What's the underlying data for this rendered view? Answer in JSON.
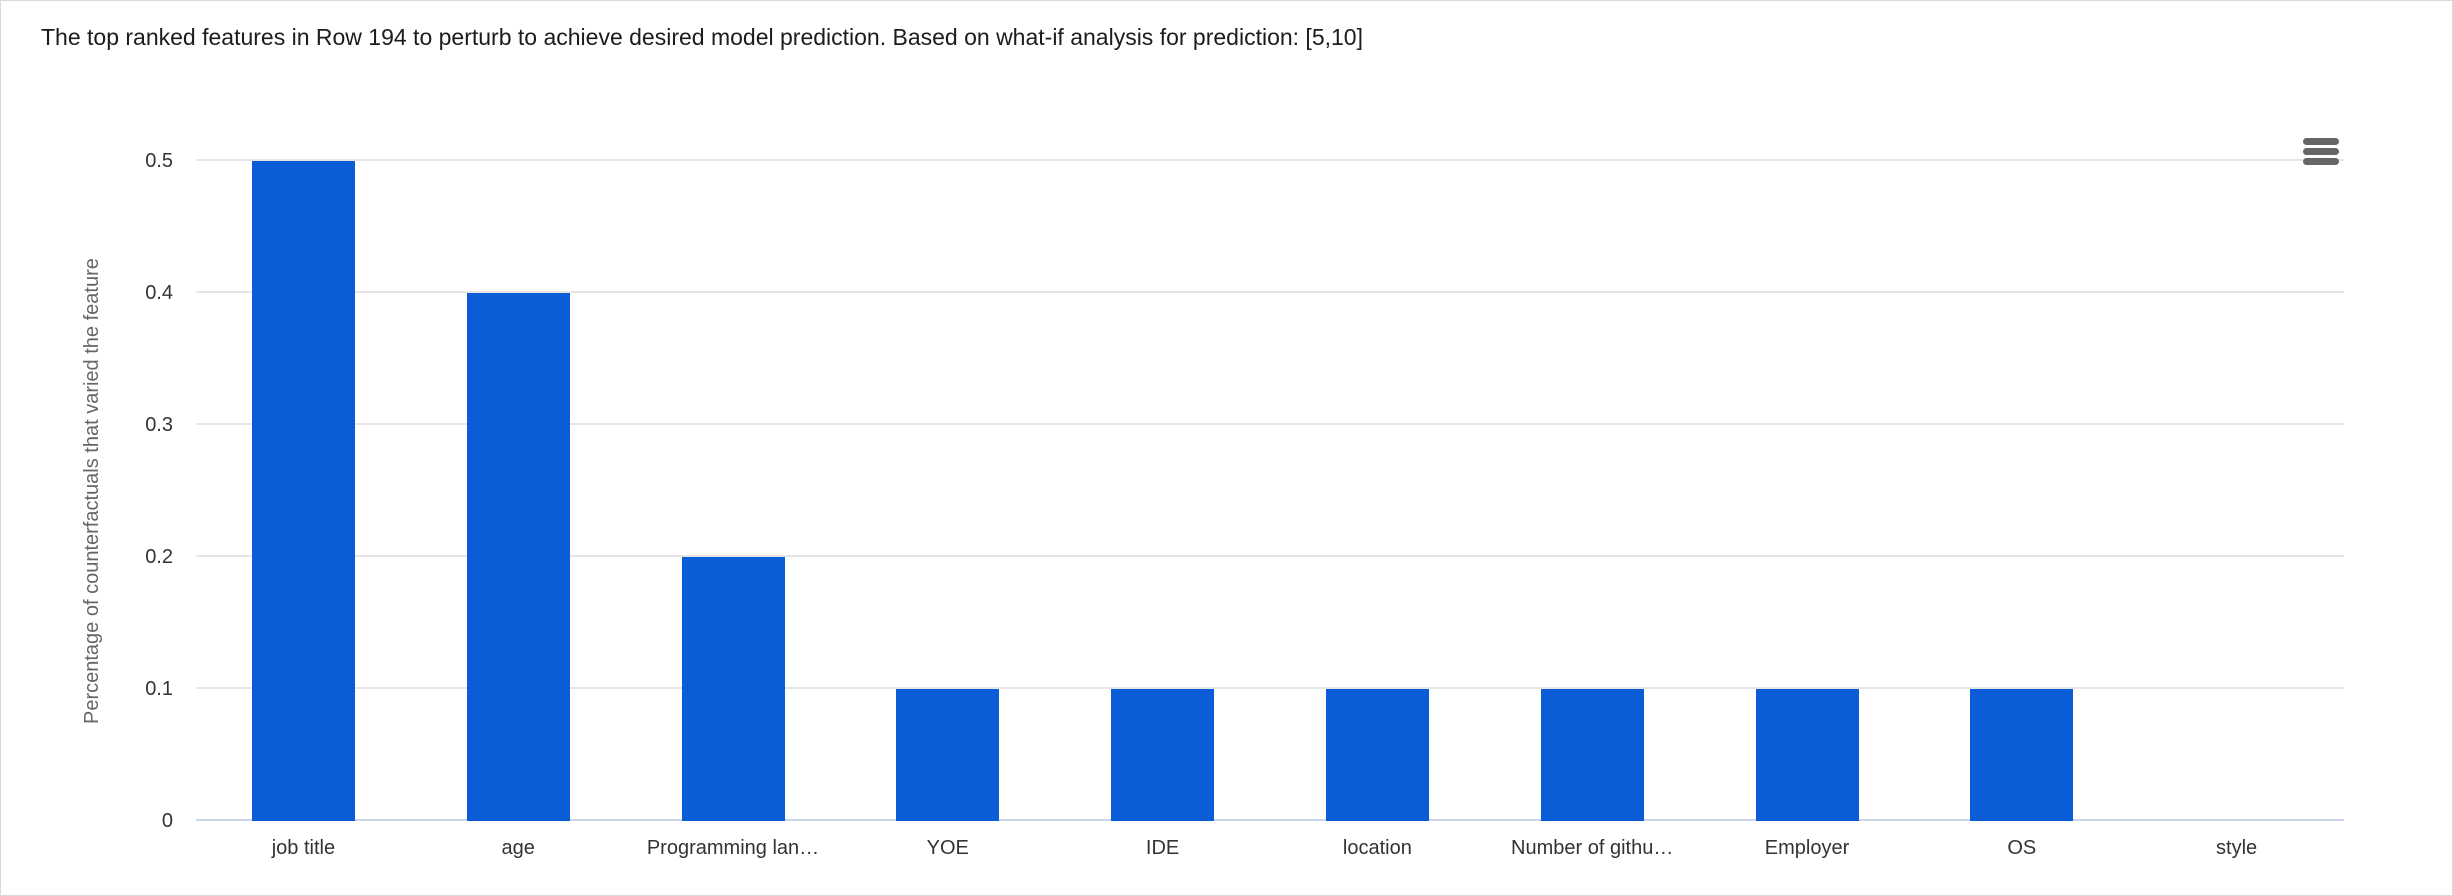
{
  "chart_data": {
    "type": "bar",
    "title": "The top ranked features in Row 194 to perturb to achieve desired model prediction. Based on what-if analysis for prediction: [5,10]",
    "xlabel": "",
    "ylabel": "Percentage of counterfactuals that varied the feature",
    "categories": [
      "job title",
      "age",
      "Programming lan…",
      "YOE",
      "IDE",
      "location",
      "Number of githu…",
      "Employer",
      "OS",
      "style"
    ],
    "values": [
      0.5,
      0.4,
      0.2,
      0.1,
      0.1,
      0.1,
      0.1,
      0.1,
      0.1,
      0
    ],
    "ylim": [
      0,
      0.5
    ],
    "yticks": [
      0,
      0.1,
      0.2,
      0.3,
      0.4,
      0.5
    ],
    "ytick_labels": [
      "0",
      "0.1",
      "0.2",
      "0.3",
      "0.4",
      "0.5"
    ],
    "grid": true,
    "legend_position": "none",
    "bar_color": "#0a5dd6"
  },
  "toolbar": {
    "context_menu_icon": "hamburger-menu-icon"
  },
  "colors": {
    "bar": "#0a5dd6",
    "gridline": "#e6e6e6",
    "axis_line": "#ccd6eb",
    "tick_text": "#333333",
    "axis_title_text": "#666666",
    "title_text": "#1c1c1c",
    "menu_icon": "#666666",
    "frame_border": "#d9d9d9",
    "background": "#ffffff"
  }
}
